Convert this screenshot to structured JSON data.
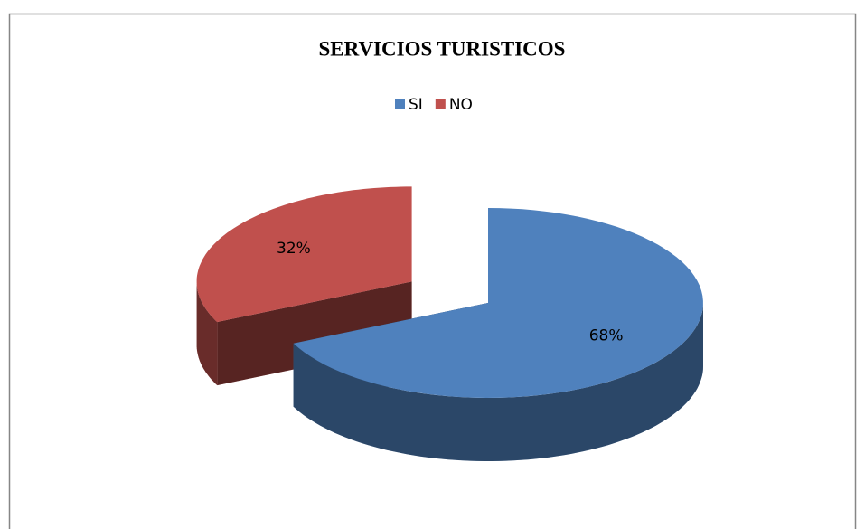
{
  "chart_data": {
    "type": "pie",
    "title": "SERVICIOS TURISTICOS",
    "categories": [
      "SI",
      "NO"
    ],
    "values": [
      68,
      32
    ],
    "value_labels": [
      "68%",
      "32%"
    ],
    "colors": [
      "#4f81bd",
      "#c0504d"
    ],
    "legend": "top",
    "style": "3d-exploded"
  }
}
